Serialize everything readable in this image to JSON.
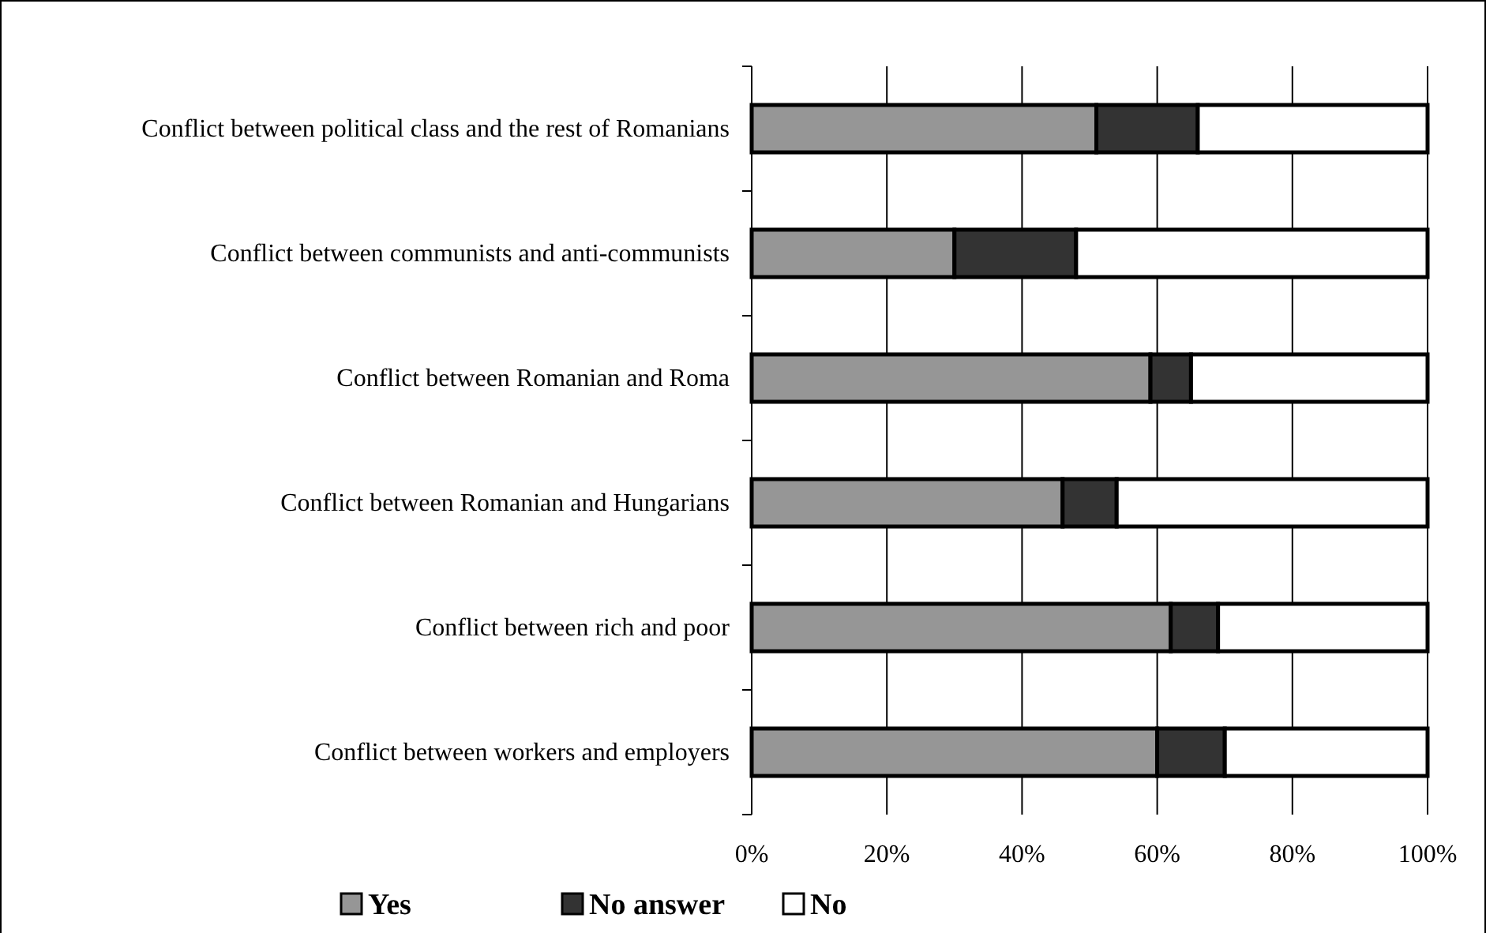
{
  "chart_data": {
    "type": "bar",
    "orientation": "horizontal",
    "stacked": true,
    "categories": [
      "Conflict between political class and the rest of Romanians",
      "Conflict between communists and anti-communists",
      "Conflict between Romanian and Roma",
      "Conflict between Romanian and Hungarians",
      "Conflict between rich and poor",
      "Conflict between workers and employers"
    ],
    "series": [
      {
        "name": "Yes",
        "color": "#969696",
        "values": [
          51,
          30,
          59,
          46,
          62,
          60
        ]
      },
      {
        "name": "No answer",
        "color": "#333333",
        "values": [
          15,
          18,
          6,
          8,
          7,
          10
        ]
      },
      {
        "name": "No",
        "color": "#ffffff",
        "values": [
          34,
          52,
          35,
          46,
          31,
          30
        ]
      }
    ],
    "xlim": [
      0,
      100
    ],
    "xticks": [
      {
        "value": 0,
        "label": "0%"
      },
      {
        "value": 20,
        "label": "20%"
      },
      {
        "value": 40,
        "label": "40%"
      },
      {
        "value": 60,
        "label": "60%"
      },
      {
        "value": 80,
        "label": "80%"
      },
      {
        "value": 100,
        "label": "100%"
      }
    ],
    "grid": "x",
    "legend": "bottom left"
  }
}
